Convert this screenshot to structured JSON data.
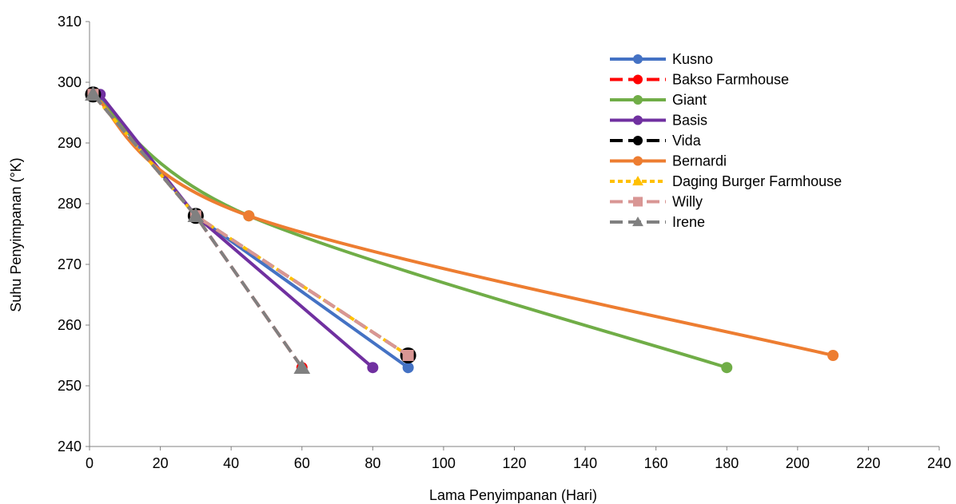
{
  "chart_data": {
    "type": "line",
    "title": "",
    "xlabel": "Lama Penyimpanan (Hari)",
    "ylabel": "Suhu Penyimpanan (°K)",
    "xlim": [
      0,
      240
    ],
    "ylim": [
      240,
      310
    ],
    "x_ticks": [
      "0",
      "20",
      "40",
      "60",
      "80",
      "100",
      "120",
      "140",
      "160",
      "180",
      "200",
      "220",
      "240"
    ],
    "y_ticks": [
      "240",
      "250",
      "260",
      "270",
      "280",
      "290",
      "300",
      "310"
    ],
    "grid": false,
    "legend_position": "top-right",
    "series": [
      {
        "name": "Kusno",
        "color": "#4472C4",
        "dash": "solid",
        "marker": "circle",
        "smooth": false,
        "points": [
          [
            2,
            298
          ],
          [
            30,
            278
          ],
          [
            90,
            253
          ]
        ]
      },
      {
        "name": "Bakso Farmhouse",
        "color": "#FF0000",
        "dash": "dash",
        "marker": "circle",
        "smooth": false,
        "points": [
          [
            1,
            298
          ],
          [
            30,
            278
          ],
          [
            60,
            253
          ]
        ]
      },
      {
        "name": "Giant",
        "color": "#70AD47",
        "dash": "solid",
        "marker": "circle",
        "smooth": true,
        "points": [
          [
            1,
            298
          ],
          [
            45,
            278
          ],
          [
            180,
            253
          ]
        ]
      },
      {
        "name": "Basis",
        "color": "#7030A0",
        "dash": "solid",
        "marker": "circle",
        "smooth": false,
        "points": [
          [
            3,
            298
          ],
          [
            30,
            278
          ],
          [
            80,
            253
          ]
        ]
      },
      {
        "name": "Vida",
        "color": "#000000",
        "dash": "dash",
        "marker": "circle",
        "smooth": false,
        "points": [
          [
            1,
            298
          ],
          [
            30,
            278
          ],
          [
            90,
            255
          ]
        ]
      },
      {
        "name": "Bernardi",
        "color": "#ED7D31",
        "dash": "solid",
        "marker": "circle",
        "smooth": true,
        "points": [
          [
            1,
            298
          ],
          [
            45,
            278
          ],
          [
            210,
            255
          ]
        ]
      },
      {
        "name": "Daging Burger Farmhouse",
        "color": "#FFC000",
        "dash": "dot",
        "marker": "triangle",
        "smooth": false,
        "points": [
          [
            1,
            298
          ],
          [
            30,
            278
          ],
          [
            90,
            255
          ]
        ]
      },
      {
        "name": "Willy",
        "color": "#D99694",
        "dash": "dash",
        "marker": "square",
        "smooth": false,
        "points": [
          [
            1,
            298
          ],
          [
            30,
            278
          ],
          [
            90,
            255
          ]
        ]
      },
      {
        "name": "Irene",
        "color": "#808080",
        "dash": "dash",
        "marker": "triangle",
        "smooth": false,
        "points": [
          [
            1,
            298
          ],
          [
            30,
            278
          ],
          [
            60,
            253
          ]
        ]
      }
    ]
  }
}
